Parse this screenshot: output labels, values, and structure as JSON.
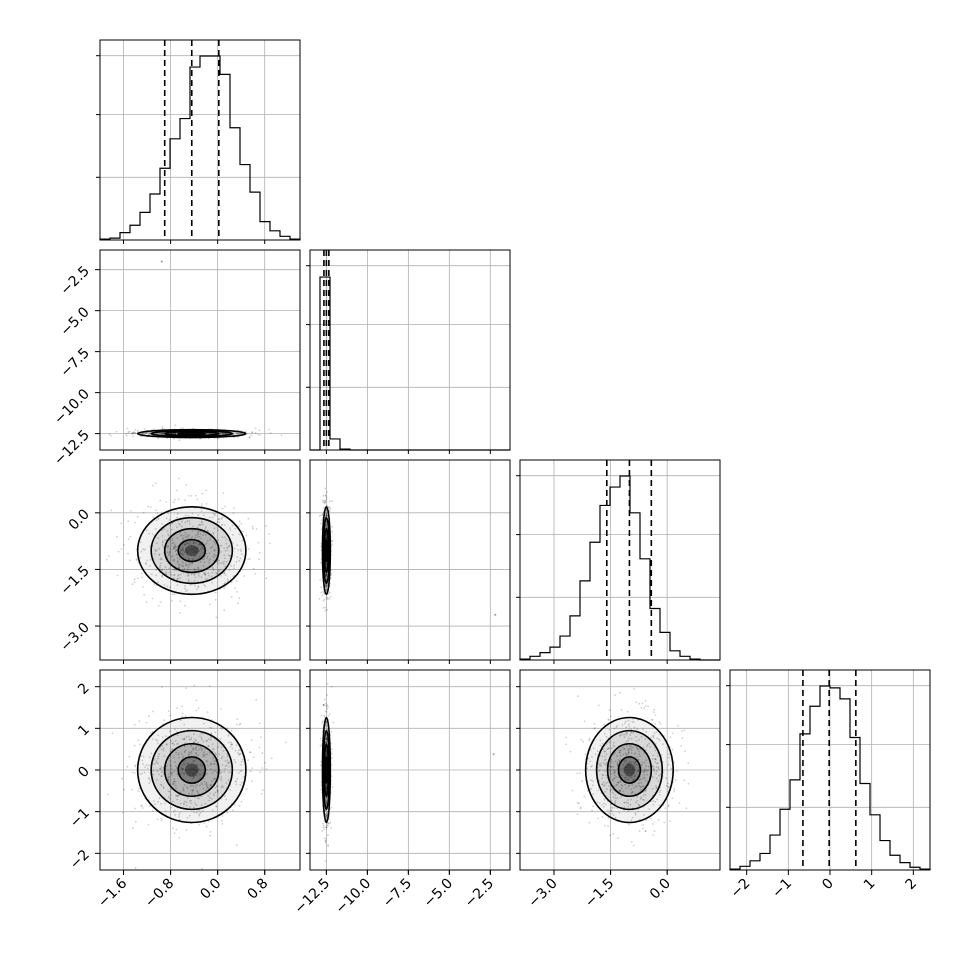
{
  "chart_data": {
    "type": "corner",
    "description_free": true,
    "parameters": [
      {
        "id": "p0",
        "range": [
          -2.0,
          1.4
        ],
        "ticks": [
          -1.6,
          -0.8,
          0.0,
          0.8
        ],
        "tick_labels": [
          "−1.6",
          "−0.8",
          "0.0",
          "0.8"
        ],
        "quantiles": [
          -0.9,
          -0.44,
          0.02
        ],
        "hist": {
          "edges": [
            -2.0,
            1.4
          ],
          "counts": [
            0.005,
            0.01,
            0.04,
            0.08,
            0.15,
            0.25,
            0.39,
            0.55,
            0.66,
            0.94,
            1.0,
            1.0,
            0.9,
            0.61,
            0.41,
            0.26,
            0.1,
            0.05,
            0.02,
            0.005
          ]
        }
      },
      {
        "id": "p1",
        "range": [
          -13.5,
          -1.3
        ],
        "ticks": [
          -12.5,
          -10.0,
          -7.5,
          -5.0,
          -2.5
        ],
        "tick_labels": [
          "−12.5",
          "−10.0",
          "−7.5",
          "−5.0",
          "−2.5"
        ],
        "quantiles": [
          -12.65,
          -12.5,
          -12.35
        ],
        "hist": {
          "edges": [
            -13.5,
            -1.3
          ],
          "counts": [
            0.0,
            0.94,
            0.06,
            0.005,
            0.0,
            0.0,
            0.0,
            0.0,
            0.0,
            0.0,
            0.0,
            0.0,
            0.0,
            0.0,
            0.0,
            0.0,
            0.0,
            0.0,
            0.0,
            0.0
          ]
        }
      },
      {
        "id": "p2",
        "range": [
          -3.9,
          1.4
        ],
        "ticks": [
          -3.0,
          -1.5,
          0.0
        ],
        "tick_labels": [
          "−3.0",
          "−1.5",
          "0.0"
        ],
        "quantiles": [
          -1.6,
          -1.0,
          -0.42
        ],
        "hist": {
          "edges": [
            -3.9,
            1.4
          ],
          "counts": [
            0.005,
            0.02,
            0.04,
            0.07,
            0.13,
            0.24,
            0.43,
            0.64,
            0.84,
            0.94,
            1.0,
            0.8,
            0.55,
            0.28,
            0.15,
            0.05,
            0.02,
            0.005,
            0.0,
            0.0
          ]
        }
      },
      {
        "id": "p3",
        "range": [
          -2.4,
          2.4
        ],
        "ticks": [
          -2,
          -1,
          0,
          1,
          2
        ],
        "tick_labels": [
          "−2",
          "−1",
          "0",
          "1",
          "2"
        ],
        "quantiles": [
          -0.65,
          -0.02,
          0.62
        ],
        "hist": {
          "edges": [
            -2.4,
            2.4
          ],
          "counts": [
            0.005,
            0.02,
            0.05,
            0.09,
            0.19,
            0.33,
            0.49,
            0.74,
            0.89,
            1.0,
            0.99,
            0.93,
            0.72,
            0.47,
            0.3,
            0.16,
            0.08,
            0.04,
            0.015,
            0.005
          ]
        }
      }
    ],
    "pairs": [
      {
        "x": "p0",
        "y": "p1",
        "center": [
          -0.44,
          -12.5
        ],
        "sigma": [
          0.46,
          0.12
        ],
        "outliers": [
          [
            -0.95,
            -2.0
          ]
        ]
      },
      {
        "x": "p0",
        "y": "p2",
        "center": [
          -0.44,
          -1.0
        ],
        "sigma": [
          0.46,
          0.58
        ]
      },
      {
        "x": "p1",
        "y": "p2",
        "center": [
          -12.5,
          -1.0
        ],
        "sigma": [
          0.12,
          0.58
        ],
        "outliers": [
          [
            -2.2,
            -2.7
          ]
        ]
      },
      {
        "x": "p0",
        "y": "p3",
        "center": [
          -0.44,
          0.0
        ],
        "sigma": [
          0.46,
          0.63
        ]
      },
      {
        "x": "p1",
        "y": "p3",
        "center": [
          -12.5,
          0.0
        ],
        "sigma": [
          0.12,
          0.63
        ],
        "outliers": [
          [
            -2.3,
            0.38
          ]
        ]
      },
      {
        "x": "p2",
        "y": "p3",
        "center": [
          -1.0,
          0.0
        ],
        "sigma": [
          0.58,
          0.63
        ]
      }
    ],
    "contour_levels_sigma": [
      0.5,
      1.0,
      1.5,
      2.0
    ],
    "grid": true
  }
}
